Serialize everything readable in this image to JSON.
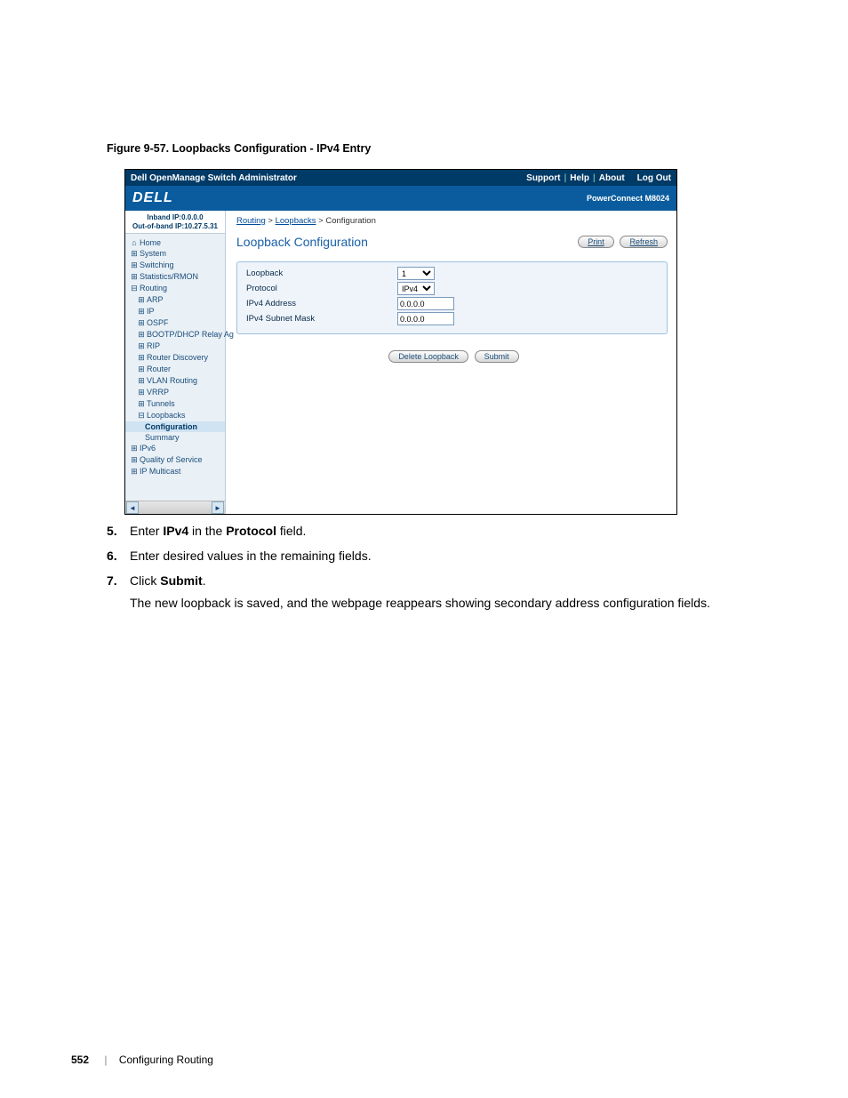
{
  "figure_caption": "Figure 9-57.    Loopbacks Configuration - IPv4 Entry",
  "screenshot": {
    "topbar": {
      "title": "Dell OpenManage Switch Administrator",
      "links": [
        "Support",
        "Help",
        "About",
        "Log Out"
      ]
    },
    "logo_text": "DELL",
    "device_label": "PowerConnect M8024",
    "ipbox": {
      "line1": "Inband IP:0.0.0.0",
      "line2": "Out-of-band IP:10.27.5.31"
    },
    "nav": {
      "home": "Home",
      "system": "System",
      "switching": "Switching",
      "stats": "Statistics/RMON",
      "routing": "Routing",
      "arp": "ARP",
      "ip": "IP",
      "ospf": "OSPF",
      "bootp": "BOOTP/DHCP Relay Ag",
      "rip": "RIP",
      "rdisco": "Router Discovery",
      "router": "Router",
      "vlanr": "VLAN Routing",
      "vrrp": "VRRP",
      "tunnels": "Tunnels",
      "loopbacks": "Loopbacks",
      "config": "Configuration",
      "summary": "Summary",
      "ipv6": "IPv6",
      "qos": "Quality of Service",
      "ipmc": "IP Multicast"
    },
    "breadcrumb": {
      "a": "Routing",
      "b": "Loopbacks",
      "c": "Configuration"
    },
    "main_heading": "Loopback Configuration",
    "buttons": {
      "print": "Print",
      "refresh": "Refresh",
      "delete": "Delete Loopback",
      "submit": "Submit"
    },
    "form": {
      "loopback_label": "Loopback",
      "loopback_value": "1",
      "protocol_label": "Protocol",
      "protocol_value": "IPv4",
      "ipv4addr_label": "IPv4 Address",
      "ipv4addr_value": "0.0.0.0",
      "mask_label": "IPv4 Subnet Mask",
      "mask_value": "0.0.0.0"
    },
    "colors": {
      "topbar_bg": "#003a66",
      "logobar_bg": "#0a5c9e",
      "sidebar_bg": "#e9f0f6",
      "heading_color": "#1960a6",
      "formarea_bg": "#eef4fa",
      "border": "#9ec2dc"
    }
  },
  "steps": [
    {
      "n": "5.",
      "html": "Enter <b>IPv4</b> in the <b>Protocol</b> field."
    },
    {
      "n": "6.",
      "html": "Enter desired values in the remaining fields."
    },
    {
      "n": "7.",
      "html": "Click <b>Submit</b>."
    }
  ],
  "followup": "The new loopback is saved, and the webpage reappears showing secondary address configuration fields.",
  "footer": {
    "page": "552",
    "section": "Configuring Routing"
  }
}
